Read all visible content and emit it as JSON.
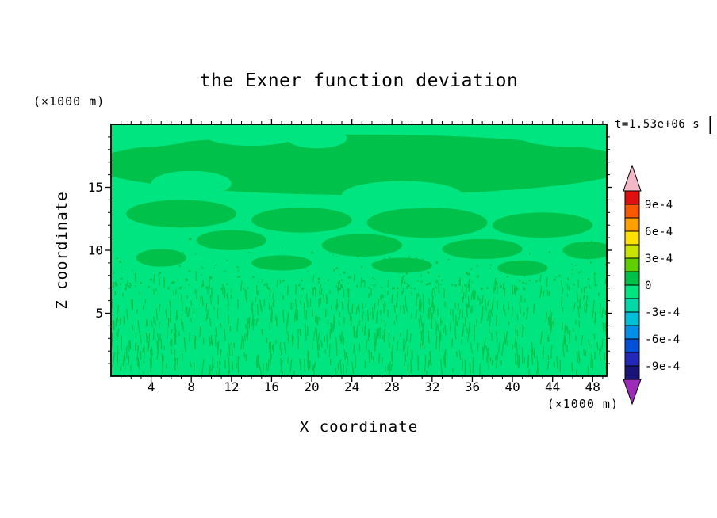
{
  "title": "the Exner function deviation",
  "time_label": "t=1.53e+06 s",
  "axes": {
    "x_label": "X coordinate",
    "x_unit": "(×1000 m)",
    "y_label": "Z coordinate",
    "y_unit": "(×1000 m)",
    "x_ticks": [
      4,
      8,
      12,
      16,
      20,
      24,
      28,
      32,
      36,
      40,
      44,
      48
    ],
    "y_ticks": [
      5,
      10,
      15
    ],
    "x_range": [
      0,
      49.4
    ],
    "y_range": [
      0,
      20
    ]
  },
  "colorbar": {
    "labels": [
      "9e-4",
      "6e-4",
      "3e-4",
      "0",
      "-3e-4",
      "-6e-4",
      "-9e-4"
    ],
    "tick_values": [
      0.0009,
      0.0006,
      0.0003,
      0,
      -0.0003,
      -0.0006,
      -0.0009
    ],
    "segment_colors": [
      "#E01010",
      "#F85800",
      "#FFA000",
      "#FFE000",
      "#C8E400",
      "#60CE00",
      "#00C24B",
      "#00E57F",
      "#00D8A8",
      "#00C0D8",
      "#0090E8",
      "#0050D8",
      "#2428B8",
      "#1A1478"
    ],
    "arrow_top_color": "#F2B8C8",
    "arrow_bottom_color": "#9C2CB8"
  },
  "chart_data": {
    "type": "heatmap",
    "title": "the Exner function deviation",
    "xlabel": "X coordinate (×1000 m)",
    "ylabel": "Z coordinate (×1000 m)",
    "time_annotation": "t=1.53e+06 s",
    "xlim": [
      0,
      49.4
    ],
    "ylim": [
      0,
      20
    ],
    "contour_interval": 0.00015,
    "colorbar_range": [
      -0.00105,
      0.00105
    ],
    "colorbar_tick_values": [
      0.0009,
      0.0006,
      0.0003,
      0,
      -0.0003,
      -0.0006,
      -0.0009
    ],
    "visible_value_bands": [
      {
        "range": [
          -0.00015,
          0
        ],
        "color": "#00E57F",
        "role": "background field"
      },
      {
        "range": [
          0,
          0.00015
        ],
        "color": "#00C24B",
        "role": "patches / fine texture"
      }
    ],
    "base_color": "#00E57F",
    "patch_color": "#00C24B",
    "patch_regions": [
      {
        "x": 25,
        "z": 16.8,
        "rx": 27,
        "rz": 2.4
      },
      {
        "x": 7,
        "z": 12.9,
        "rx": 5.5,
        "rz": 1.1
      },
      {
        "x": 19,
        "z": 12.4,
        "rx": 5,
        "rz": 1.0
      },
      {
        "x": 31.5,
        "z": 12.2,
        "rx": 6,
        "rz": 1.2
      },
      {
        "x": 43,
        "z": 12.0,
        "rx": 5,
        "rz": 1.0
      },
      {
        "x": 12,
        "z": 10.8,
        "rx": 3.5,
        "rz": 0.8
      },
      {
        "x": 25,
        "z": 10.4,
        "rx": 4,
        "rz": 0.9
      },
      {
        "x": 37,
        "z": 10.1,
        "rx": 4,
        "rz": 0.8
      },
      {
        "x": 47.5,
        "z": 10.0,
        "rx": 2.5,
        "rz": 0.7
      },
      {
        "x": 5,
        "z": 9.4,
        "rx": 2.5,
        "rz": 0.7
      },
      {
        "x": 17,
        "z": 9.0,
        "rx": 3,
        "rz": 0.6
      },
      {
        "x": 29,
        "z": 8.8,
        "rx": 3,
        "rz": 0.6
      },
      {
        "x": 41,
        "z": 8.6,
        "rx": 2.5,
        "rz": 0.6
      }
    ],
    "base_holes": [
      {
        "x": 3,
        "z": 19.5,
        "rx": 6,
        "rz": 1.3
      },
      {
        "x": 14,
        "z": 19.3,
        "rx": 5,
        "rz": 1.0
      },
      {
        "x": 46,
        "z": 19.4,
        "rx": 6,
        "rz": 1.2
      },
      {
        "x": 8,
        "z": 15.3,
        "rx": 4,
        "rz": 1.0
      },
      {
        "x": 29,
        "z": 14.4,
        "rx": 6,
        "rz": 1.1
      },
      {
        "x": 20.5,
        "z": 18.9,
        "rx": 3,
        "rz": 0.8
      },
      {
        "x": 40,
        "z": 14.0,
        "rx": 3.5,
        "rz": 0.8
      }
    ],
    "speckle": {
      "seed": 7,
      "strands": 850,
      "z_max": 7.6,
      "taper_z": 6.6,
      "dots": 230
    }
  }
}
